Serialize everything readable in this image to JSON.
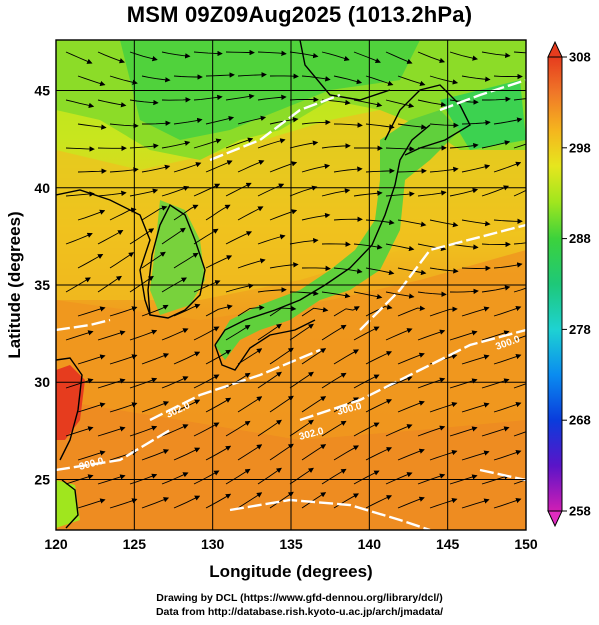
{
  "title": "MSM 09Z09Aug2025 (1013.2hPa)",
  "axes": {
    "x_label": "Longitude (degrees)",
    "y_label": "Latitude  (degrees)",
    "x_ticks": [
      "120",
      "125",
      "130",
      "135",
      "140",
      "145",
      "150"
    ],
    "y_ticks": [
      "25",
      "30",
      "35",
      "40",
      "45"
    ],
    "x_range": [
      120,
      150
    ],
    "y_range": [
      22.4,
      47.6
    ]
  },
  "colorbar": {
    "ticks": [
      "308",
      "298",
      "288",
      "278",
      "268",
      "258"
    ],
    "range": [
      258,
      308
    ],
    "colors": [
      "#d01eb4",
      "#3c14c8",
      "#0a46e6",
      "#14a0f0",
      "#1ed2c8",
      "#1ec878",
      "#3cd23c",
      "#a0e61e",
      "#e6e61e",
      "#f5b41e",
      "#f07828",
      "#e63c1e"
    ]
  },
  "contour_labels": [
    "300.0",
    "300.0",
    "302.0",
    "302.0",
    "300.0"
  ],
  "footer": {
    "line1": "Drawing by DCL (https://www.gfd-dennou.org/library/dcl/)",
    "line2": "Data from http://database.rish.kyoto-u.ac.jp/arch/jmadata/"
  }
}
